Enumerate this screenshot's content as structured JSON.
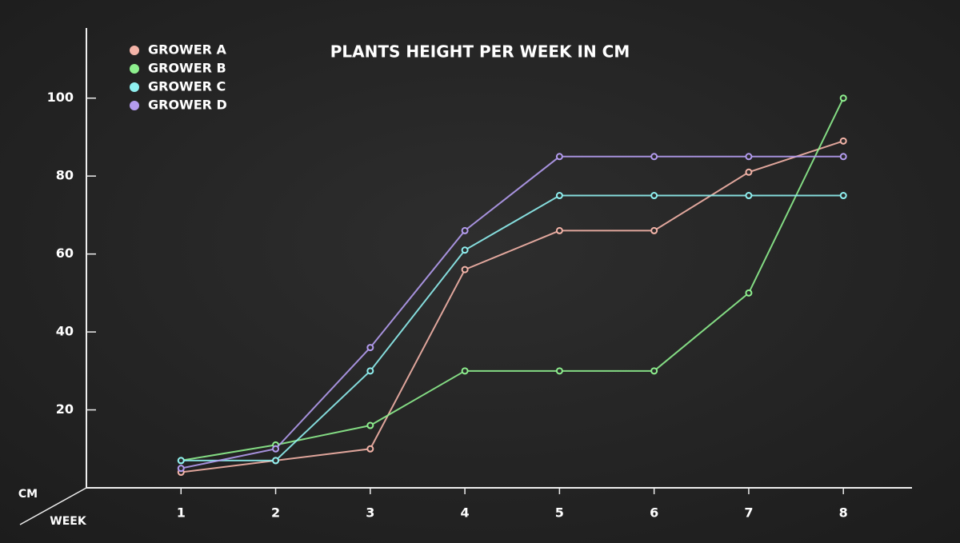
{
  "chart_data": {
    "type": "line",
    "title": "PLANTS HEIGHT PER WEEK IN CM",
    "y_label": "CM",
    "x_label": "WEEK",
    "x": [
      1,
      2,
      3,
      4,
      5,
      6,
      7,
      8
    ],
    "xlim": [
      0,
      8.7
    ],
    "xticks": [
      1,
      2,
      3,
      4,
      5,
      6,
      7,
      8
    ],
    "ylim": [
      0,
      118
    ],
    "yticks": [
      20,
      40,
      60,
      80,
      100
    ],
    "series": [
      {
        "name": "GROWER A",
        "color": "#f4b4a8",
        "values": [
          4,
          7,
          10,
          56,
          66,
          66,
          81,
          89
        ]
      },
      {
        "name": "GROWER B",
        "color": "#8ef08e",
        "values": [
          7,
          11,
          16,
          30,
          30,
          30,
          50,
          100
        ]
      },
      {
        "name": "GROWER C",
        "color": "#8ff0f0",
        "values": [
          7,
          7,
          30,
          61,
          75,
          75,
          75,
          75
        ]
      },
      {
        "name": "GROWER D",
        "color": "#b49cf0",
        "values": [
          5,
          10,
          36,
          66,
          85,
          85,
          85,
          85
        ]
      }
    ]
  }
}
